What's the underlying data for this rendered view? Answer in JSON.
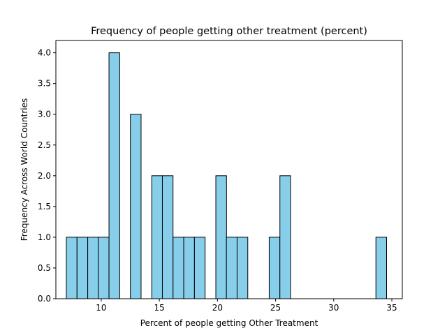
{
  "chart_data": {
    "type": "bar",
    "title": "Frequency of people getting other treatment (percent)",
    "xlabel": "Percent of people getting Other Treatment",
    "ylabel": "Frequency Across World Countries",
    "xlim": [
      6.1,
      35.9
    ],
    "ylim": [
      0,
      4.2
    ],
    "bin_width": 0.918,
    "x_ticks": [
      10,
      15,
      20,
      25,
      30,
      35
    ],
    "y_ticks": [
      0.0,
      0.5,
      1.0,
      1.5,
      2.0,
      2.5,
      3.0,
      3.5,
      4.0
    ],
    "y_tick_labels": [
      "0.0",
      "0.5",
      "1.0",
      "1.5",
      "2.0",
      "2.5",
      "3.0",
      "3.5",
      "4.0"
    ],
    "bin_starts": [
      7.0,
      7.92,
      8.84,
      9.75,
      10.67,
      11.59,
      12.51,
      13.43,
      14.35,
      15.26,
      16.18,
      17.1,
      18.02,
      18.94,
      19.86,
      20.77,
      21.69,
      22.61,
      23.53,
      24.45,
      25.37,
      26.28,
      27.2,
      28.12,
      29.04,
      29.96,
      30.88,
      31.79,
      32.71,
      33.63
    ],
    "values": [
      1,
      1,
      1,
      1,
      4,
      0,
      3,
      0,
      2,
      2,
      1,
      1,
      1,
      0,
      2,
      1,
      1,
      0,
      0,
      1,
      2,
      0,
      0,
      0,
      0,
      0,
      0,
      0,
      0,
      1
    ],
    "bar_color": "#87ceeb",
    "edge_color": "#000000",
    "grid": false
  }
}
